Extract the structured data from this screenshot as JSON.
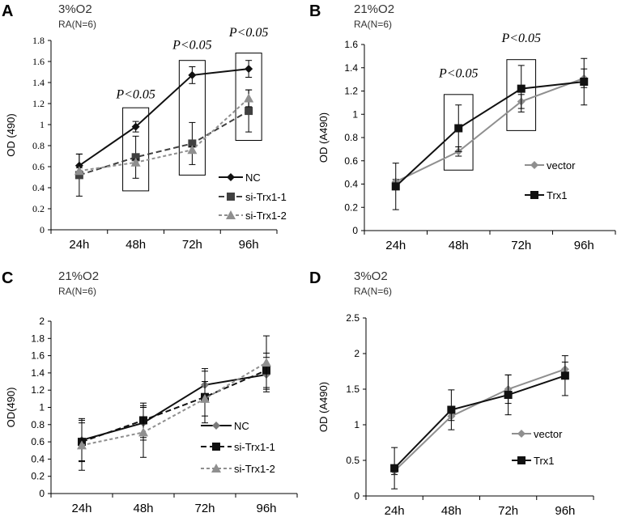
{
  "chart_data": [
    {
      "panel": "A",
      "type": "line",
      "title": "3%O2",
      "subtitle": "RA(N=6)",
      "ylabel": "OD (490)",
      "ylim": [
        0,
        1.8
      ],
      "yticks": [
        "0",
        "0.2",
        "0.4",
        "0.6",
        "0.8",
        "1",
        "1.2",
        "1.4",
        "1.6",
        "1.8"
      ],
      "categories": [
        "24h",
        "48h",
        "72h",
        "96h"
      ],
      "legend_position": "bottom-right",
      "series": [
        {
          "name": "NC",
          "marker": "diamond",
          "color": "#111111",
          "dash": "solid",
          "values": [
            0.61,
            0.98,
            1.47,
            1.53
          ],
          "errors": [
            0.11,
            0.05,
            0.08,
            0.08
          ]
        },
        {
          "name": "si-Trx1-1",
          "marker": "square",
          "color": "#404040",
          "dash": "long",
          "values": [
            0.52,
            0.69,
            0.82,
            1.13
          ],
          "errors": [
            0.2,
            0.2,
            0.2,
            0.2
          ]
        },
        {
          "name": "si-Trx1-2",
          "marker": "triangle",
          "color": "#8f8f8f",
          "dash": "short",
          "values": [
            0.56,
            0.64,
            0.76,
            1.25
          ],
          "errors": [
            0.03,
            0.03,
            0.03,
            0.08
          ]
        }
      ],
      "annotations": [
        {
          "text": "P<0.05",
          "category": "48h",
          "box": [
            0.37,
            1.16
          ],
          "label_y": 1.25
        },
        {
          "text": "P<0.05",
          "category": "72h",
          "box": [
            0.52,
            1.61
          ],
          "label_y": 1.72
        },
        {
          "text": "P<0.05",
          "category": "96h",
          "box": [
            0.85,
            1.68
          ],
          "label_y": 1.84
        }
      ]
    },
    {
      "panel": "B",
      "type": "line",
      "title": "21%O2",
      "subtitle": "RA(N=6)",
      "ylabel": "OD (A490)",
      "ylim": [
        0,
        1.6
      ],
      "yticks": [
        "0",
        "0.2",
        "0.4",
        "0.6",
        "0.8",
        "1",
        "1.2",
        "1.4",
        "1.6"
      ],
      "categories": [
        "24h",
        "48h",
        "72h",
        "96h"
      ],
      "legend_position": "right",
      "series": [
        {
          "name": "vector",
          "marker": "diamond",
          "color": "#8f8f8f",
          "dash": "solid",
          "values": [
            0.42,
            0.68,
            1.11,
            1.31
          ],
          "errors": [
            0.02,
            0.04,
            0.06,
            0.08
          ]
        },
        {
          "name": "Trx1",
          "marker": "square",
          "color": "#111111",
          "dash": "solid",
          "values": [
            0.38,
            0.88,
            1.22,
            1.28
          ],
          "errors": [
            0.2,
            0.2,
            0.2,
            0.2
          ]
        }
      ],
      "annotations": [
        {
          "text": "P<0.05",
          "category": "48h",
          "box": [
            0.52,
            1.17
          ],
          "label_y": 1.32
        },
        {
          "text": "P<0.05",
          "category": "72h",
          "box": [
            0.86,
            1.47
          ],
          "label_y": 1.62
        }
      ]
    },
    {
      "panel": "C",
      "type": "line",
      "title": "21%O2",
      "subtitle": "RA(N=6)",
      "ylabel": "OD(490)",
      "ylim": [
        0,
        2
      ],
      "yticks": [
        "0",
        "0.2",
        "0.4",
        "0.6",
        "0.8",
        "1",
        "1.2",
        "1.4",
        "1.6",
        "1.8",
        "2"
      ],
      "categories": [
        "24h",
        "48h",
        "72h",
        "96h"
      ],
      "legend_position": "right",
      "series": [
        {
          "name": "NC",
          "marker": "diamond",
          "color": "#111111",
          "marker_color": "#7a7a7a",
          "dash": "solid",
          "values": [
            0.62,
            0.82,
            1.26,
            1.38
          ],
          "errors": [
            0.25,
            0.2,
            0.19,
            0.2
          ]
        },
        {
          "name": "si-Trx1-1",
          "marker": "square",
          "color": "#111111",
          "dash": "long",
          "values": [
            0.6,
            0.85,
            1.12,
            1.43
          ],
          "errors": [
            0.22,
            0.2,
            0.3,
            0.2
          ]
        },
        {
          "name": "si-Trx1-2",
          "marker": "triangle",
          "color": "#8f8f8f",
          "dash": "short",
          "values": [
            0.56,
            0.71,
            1.1,
            1.52
          ],
          "errors": [
            0.29,
            0.29,
            0.2,
            0.31
          ]
        }
      ],
      "annotations": []
    },
    {
      "panel": "D",
      "type": "line",
      "title": "3%O2",
      "subtitle": "RA(N=6)",
      "ylabel": "OD (A490)",
      "ylim": [
        0,
        2.5
      ],
      "yticks": [
        "0",
        "0.5",
        "1",
        "1.5",
        "2",
        "2.5"
      ],
      "categories": [
        "24h",
        "48h",
        "72h",
        "96h"
      ],
      "legend_position": "right",
      "series": [
        {
          "name": "vector",
          "marker": "diamond",
          "color": "#8f8f8f",
          "dash": "solid",
          "values": [
            0.35,
            1.12,
            1.5,
            1.78
          ],
          "errors": [
            0.05,
            0.06,
            0.2,
            0.1
          ]
        },
        {
          "name": "Trx1",
          "marker": "square",
          "color": "#111111",
          "dash": "solid",
          "values": [
            0.39,
            1.21,
            1.42,
            1.69
          ],
          "errors": [
            0.29,
            0.28,
            0.28,
            0.28
          ]
        }
      ],
      "annotations": []
    }
  ]
}
